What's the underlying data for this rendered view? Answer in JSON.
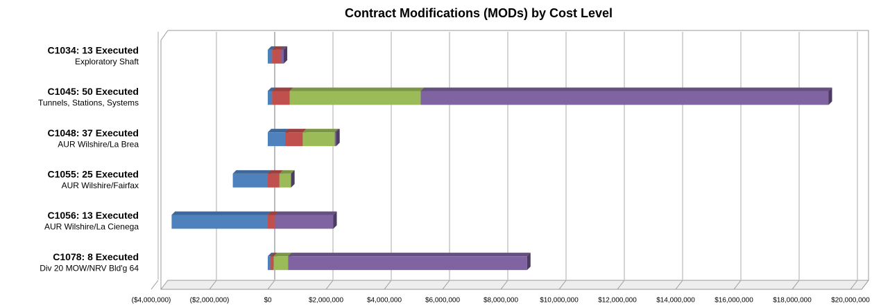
{
  "chart_data": {
    "type": "bar",
    "orientation": "horizontal",
    "stacked": true,
    "title": "Contract Modifications (MODs) by Cost Level",
    "categories": [
      "C1034: 13 Executed",
      "C1045: 50 Executed",
      "C1048: 37 Executed",
      "C1055: 25 Executed",
      "C1056: 13 Executed",
      "C1078: 8 Executed"
    ],
    "category_subtitles": [
      "Exploratory Shaft",
      "Tunnels, Stations, Systems",
      "AUR Wilshire/La Brea",
      "AUR Wilshire/Fairfax",
      "AUR Wilshire/La Cienega",
      "Div 20 MOW/NRV Bld'g 64"
    ],
    "series": [
      {
        "color": "#4f81bd",
        "values": [
          150000,
          150000,
          600000,
          -1200000,
          -3300000,
          100000
        ]
      },
      {
        "color": "#c0504d",
        "values": [
          300000,
          600000,
          600000,
          400000,
          250000,
          100000
        ]
      },
      {
        "color": "#9bbb59",
        "values": [
          0,
          4500000,
          1100000,
          400000,
          0,
          500000
        ]
      },
      {
        "color": "#8064a2",
        "values": [
          100000,
          14000000,
          50000,
          0,
          2000000,
          8200000
        ]
      }
    ],
    "xlim": [
      -4000000,
      20000000
    ],
    "xticks": [
      {
        "value": -4000000,
        "label": "($4,000,000)"
      },
      {
        "value": -2000000,
        "label": "($2,000,000)"
      },
      {
        "value": 0,
        "label": "$0"
      },
      {
        "value": 2000000,
        "label": "$2,000,000"
      },
      {
        "value": 4000000,
        "label": "$4,000,000"
      },
      {
        "value": 6000000,
        "label": "$6,000,000"
      },
      {
        "value": 8000000,
        "label": "$8,000,000"
      },
      {
        "value": 10000000,
        "label": "$10,000,000"
      },
      {
        "value": 12000000,
        "label": "$12,000,000"
      },
      {
        "value": 14000000,
        "label": "$14,000,000"
      },
      {
        "value": 16000000,
        "label": "$16,000,000"
      },
      {
        "value": 18000000,
        "label": "$18,000,000"
      },
      {
        "value": 20000000,
        "label": "$20,000,000"
      }
    ],
    "negative_tick_color": "#ff0000",
    "grid": true
  }
}
